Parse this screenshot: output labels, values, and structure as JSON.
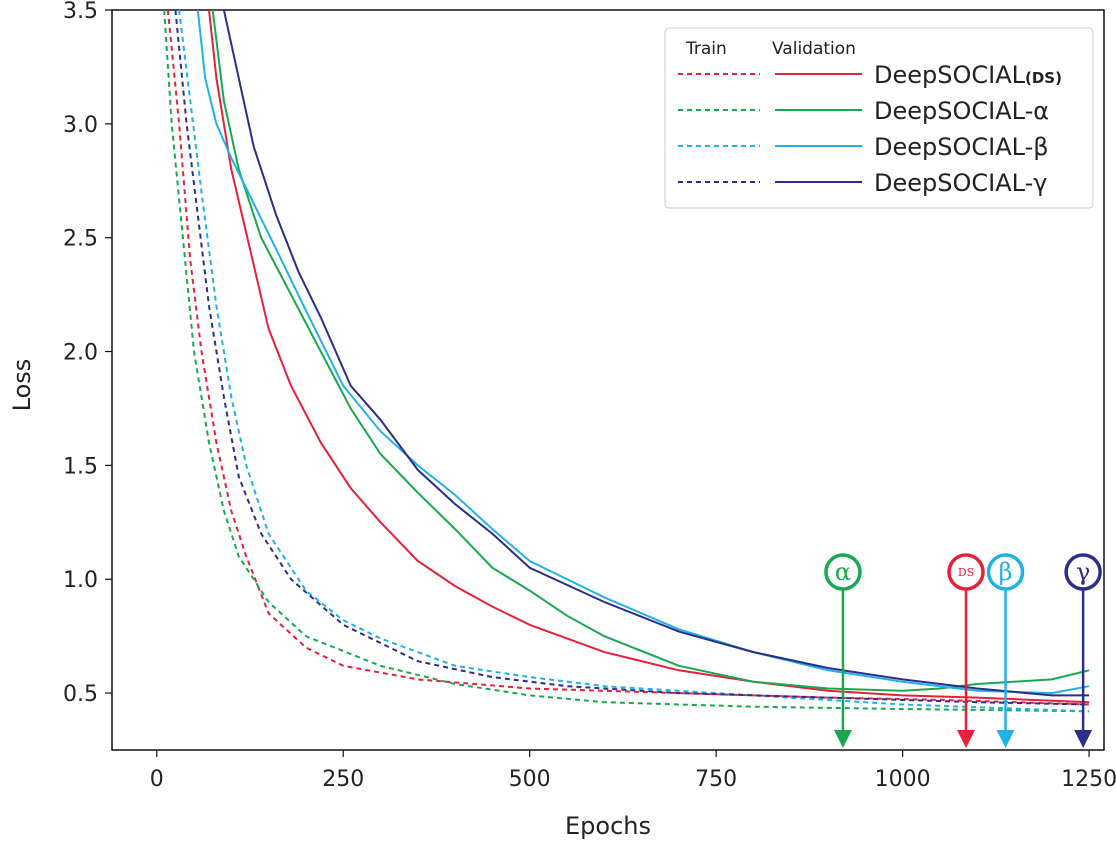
{
  "chart_data": {
    "type": "line",
    "title": "",
    "xlabel": "Epochs",
    "ylabel": "Loss",
    "xlim": [
      -60,
      1270
    ],
    "ylim": [
      0.25,
      3.5
    ],
    "xticks": [
      "0",
      "250",
      "500",
      "750",
      "1000",
      "1250"
    ],
    "xtick_values": [
      0,
      250,
      500,
      750,
      1000,
      1250
    ],
    "yticks": [
      "0.5",
      "1.0",
      "1.5",
      "2.0",
      "2.5",
      "3.0",
      "3.5"
    ],
    "ytick_values": [
      0.5,
      1.0,
      1.5,
      2.0,
      2.5,
      3.0,
      3.5
    ],
    "grid": false,
    "legend": {
      "placement": "top-right",
      "train_header": "Train",
      "validation_header": "Validation"
    },
    "series": [
      {
        "name": "DeepSOCIAL",
        "name_sub": "(DS)",
        "color": "#e8203c",
        "train": [
          [
            15,
            3.5
          ],
          [
            30,
            3.0
          ],
          [
            45,
            2.4
          ],
          [
            60,
            2.0
          ],
          [
            80,
            1.6
          ],
          [
            100,
            1.3
          ],
          [
            120,
            1.1
          ],
          [
            150,
            0.85
          ],
          [
            200,
            0.7
          ],
          [
            250,
            0.62
          ],
          [
            350,
            0.56
          ],
          [
            500,
            0.52
          ],
          [
            700,
            0.5
          ],
          [
            900,
            0.48
          ],
          [
            1050,
            0.47
          ],
          [
            1250,
            0.45
          ]
        ],
        "validation": [
          [
            70,
            3.5
          ],
          [
            80,
            3.2
          ],
          [
            100,
            2.8
          ],
          [
            125,
            2.45
          ],
          [
            150,
            2.1
          ],
          [
            180,
            1.85
          ],
          [
            220,
            1.6
          ],
          [
            260,
            1.4
          ],
          [
            300,
            1.25
          ],
          [
            350,
            1.08
          ],
          [
            400,
            0.97
          ],
          [
            450,
            0.88
          ],
          [
            500,
            0.8
          ],
          [
            600,
            0.68
          ],
          [
            700,
            0.6
          ],
          [
            800,
            0.55
          ],
          [
            900,
            0.51
          ],
          [
            1000,
            0.49
          ],
          [
            1100,
            0.48
          ],
          [
            1250,
            0.46
          ]
        ]
      },
      {
        "name": "DeepSOCIAL-α",
        "name_sub": "",
        "color": "#1aa84f",
        "train": [
          [
            10,
            3.5
          ],
          [
            20,
            3.0
          ],
          [
            35,
            2.5
          ],
          [
            50,
            2.0
          ],
          [
            70,
            1.6
          ],
          [
            90,
            1.3
          ],
          [
            110,
            1.1
          ],
          [
            150,
            0.9
          ],
          [
            200,
            0.75
          ],
          [
            300,
            0.62
          ],
          [
            400,
            0.54
          ],
          [
            500,
            0.49
          ],
          [
            600,
            0.46
          ],
          [
            800,
            0.44
          ],
          [
            1000,
            0.43
          ],
          [
            1250,
            0.42
          ]
        ],
        "validation": [
          [
            75,
            3.5
          ],
          [
            90,
            3.1
          ],
          [
            110,
            2.8
          ],
          [
            140,
            2.5
          ],
          [
            180,
            2.25
          ],
          [
            220,
            2.0
          ],
          [
            260,
            1.75
          ],
          [
            300,
            1.55
          ],
          [
            350,
            1.38
          ],
          [
            400,
            1.22
          ],
          [
            450,
            1.05
          ],
          [
            500,
            0.95
          ],
          [
            550,
            0.84
          ],
          [
            600,
            0.75
          ],
          [
            700,
            0.62
          ],
          [
            800,
            0.55
          ],
          [
            900,
            0.52
          ],
          [
            1000,
            0.51
          ],
          [
            1050,
            0.52
          ],
          [
            1100,
            0.54
          ],
          [
            1200,
            0.56
          ],
          [
            1250,
            0.6
          ]
        ]
      },
      {
        "name": "DeepSOCIAL-β",
        "name_sub": "",
        "color": "#20b2e6",
        "train": [
          [
            30,
            3.5
          ],
          [
            45,
            3.1
          ],
          [
            60,
            2.7
          ],
          [
            80,
            2.2
          ],
          [
            100,
            1.8
          ],
          [
            120,
            1.5
          ],
          [
            150,
            1.2
          ],
          [
            200,
            0.95
          ],
          [
            250,
            0.82
          ],
          [
            300,
            0.74
          ],
          [
            400,
            0.62
          ],
          [
            500,
            0.57
          ],
          [
            600,
            0.53
          ],
          [
            800,
            0.49
          ],
          [
            1000,
            0.45
          ],
          [
            1250,
            0.42
          ]
        ],
        "validation": [
          [
            55,
            3.5
          ],
          [
            65,
            3.2
          ],
          [
            80,
            3.0
          ],
          [
            100,
            2.85
          ],
          [
            130,
            2.65
          ],
          [
            160,
            2.45
          ],
          [
            200,
            2.18
          ],
          [
            250,
            1.85
          ],
          [
            300,
            1.65
          ],
          [
            350,
            1.5
          ],
          [
            400,
            1.37
          ],
          [
            450,
            1.22
          ],
          [
            500,
            1.08
          ],
          [
            600,
            0.92
          ],
          [
            700,
            0.78
          ],
          [
            800,
            0.68
          ],
          [
            900,
            0.6
          ],
          [
            1000,
            0.55
          ],
          [
            1100,
            0.51
          ],
          [
            1200,
            0.5
          ],
          [
            1250,
            0.53
          ]
        ]
      },
      {
        "name": "DeepSOCIAL-γ",
        "name_sub": "",
        "color": "#2b2e8a",
        "train": [
          [
            25,
            3.5
          ],
          [
            40,
            3.0
          ],
          [
            55,
            2.6
          ],
          [
            70,
            2.2
          ],
          [
            90,
            1.8
          ],
          [
            110,
            1.45
          ],
          [
            140,
            1.2
          ],
          [
            180,
            1.0
          ],
          [
            250,
            0.8
          ],
          [
            350,
            0.64
          ],
          [
            450,
            0.57
          ],
          [
            550,
            0.53
          ],
          [
            700,
            0.5
          ],
          [
            900,
            0.48
          ],
          [
            1100,
            0.46
          ],
          [
            1250,
            0.45
          ]
        ],
        "validation": [
          [
            90,
            3.5
          ],
          [
            110,
            3.2
          ],
          [
            130,
            2.9
          ],
          [
            160,
            2.6
          ],
          [
            190,
            2.35
          ],
          [
            220,
            2.15
          ],
          [
            260,
            1.85
          ],
          [
            300,
            1.7
          ],
          [
            350,
            1.48
          ],
          [
            400,
            1.33
          ],
          [
            450,
            1.2
          ],
          [
            500,
            1.05
          ],
          [
            600,
            0.9
          ],
          [
            700,
            0.77
          ],
          [
            800,
            0.68
          ],
          [
            900,
            0.61
          ],
          [
            1000,
            0.56
          ],
          [
            1100,
            0.52
          ],
          [
            1200,
            0.49
          ],
          [
            1250,
            0.49
          ]
        ]
      }
    ],
    "annotations": [
      {
        "label": "α",
        "x": 920,
        "color": "#1aa84f"
      },
      {
        "label": "DS",
        "x": 1085,
        "color": "#e8203c"
      },
      {
        "label": "β",
        "x": 1138,
        "color": "#20b2e6"
      },
      {
        "label": "γ",
        "x": 1242,
        "color": "#2b2e8a"
      }
    ]
  }
}
